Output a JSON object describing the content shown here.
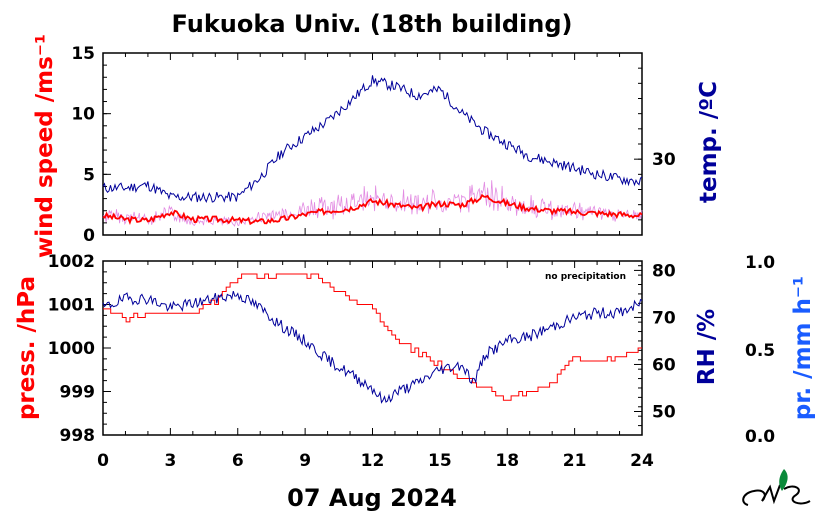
{
  "title": "Fukuoka Univ. (18th building)",
  "date_label": "07 Aug 2024",
  "colors": {
    "wind": "#ff0000",
    "wind_raw": "#dd77dd",
    "temp": "#00009a",
    "press": "#ff0000",
    "rh": "#00009a",
    "precip": "#1a5cff",
    "frame": "#000000"
  },
  "chart_data": [
    {
      "type": "line",
      "panel": "top",
      "x_ticks": [
        "0",
        "3",
        "6",
        "9",
        "12",
        "15",
        "18",
        "21",
        "24"
      ],
      "xlim": [
        0,
        24
      ],
      "y_left": {
        "label": "wind speed /ms⁻¹",
        "ticks": [
          "0",
          "5",
          "10",
          "15"
        ],
        "lim": [
          0,
          15
        ]
      },
      "y_right": {
        "label": "temp. /ºC",
        "ticks": [
          "30"
        ],
        "lim": [
          25,
          37
        ]
      },
      "series": [
        {
          "axis": "left",
          "style": "raw",
          "x": [
            0,
            1,
            2,
            3,
            4,
            5,
            6,
            7,
            8,
            9,
            10,
            11,
            12,
            13,
            14,
            15,
            16,
            17,
            18,
            19,
            20,
            21,
            22,
            23,
            24
          ],
          "y": [
            2.0,
            1.8,
            1.6,
            2.3,
            1.4,
            1.5,
            1.3,
            1.7,
            2.0,
            2.5,
            2.8,
            3.0,
            3.6,
            3.2,
            3.0,
            3.3,
            3.2,
            4.3,
            3.2,
            2.8,
            2.5,
            2.4,
            2.2,
            2.0,
            1.9
          ]
        },
        {
          "axis": "left",
          "style": "mean",
          "x": [
            0,
            1,
            2,
            3,
            4,
            5,
            6,
            7,
            8,
            9,
            10,
            11,
            12,
            13,
            14,
            15,
            16,
            17,
            18,
            19,
            20,
            21,
            22,
            23,
            24
          ],
          "y": [
            1.6,
            1.3,
            1.2,
            1.9,
            1.3,
            1.3,
            1.2,
            1.1,
            1.3,
            1.7,
            2.0,
            2.2,
            2.8,
            2.5,
            2.2,
            2.6,
            2.5,
            3.2,
            2.6,
            2.2,
            2.0,
            1.9,
            1.8,
            1.7,
            1.6
          ]
        },
        {
          "axis": "right",
          "x": [
            0,
            1,
            2,
            3,
            4,
            5,
            6,
            7,
            8,
            9,
            10,
            11,
            12,
            13,
            14,
            15,
            16,
            17,
            18,
            19,
            20,
            21,
            22,
            23,
            24
          ],
          "y": [
            28.1,
            28.1,
            28.3,
            27.5,
            27.5,
            27.5,
            27.5,
            28.8,
            30.5,
            31.5,
            32.5,
            33.8,
            35.2,
            34.8,
            34.2,
            34.6,
            33.0,
            31.8,
            31.0,
            30.2,
            29.8,
            29.4,
            29.0,
            28.7,
            28.5
          ]
        }
      ]
    },
    {
      "type": "line",
      "panel": "bottom",
      "note": "no precipitation",
      "x_ticks": [
        "0",
        "3",
        "6",
        "9",
        "12",
        "15",
        "18",
        "21",
        "24"
      ],
      "xlim": [
        0,
        24
      ],
      "y_left": {
        "label": "press. /hPa",
        "ticks": [
          "998",
          "999",
          "1000",
          "1001",
          "1002"
        ],
        "lim": [
          998,
          1002
        ]
      },
      "y_right": {
        "label": "RH /%",
        "ticks": [
          "50",
          "60",
          "70",
          "80"
        ],
        "lim": [
          45,
          82
        ]
      },
      "y_far_right": {
        "label": "pr. /mm h⁻¹",
        "ticks": [
          "0.0",
          "0.5",
          "1.0"
        ],
        "lim": [
          0,
          1
        ]
      },
      "series": [
        {
          "axis": "left",
          "x": [
            0,
            1,
            2,
            3,
            4,
            5,
            6,
            6.5,
            7,
            8,
            9,
            10,
            11,
            12,
            13,
            14,
            15,
            16,
            17,
            18,
            19,
            20,
            21,
            22,
            23,
            24
          ],
          "y": [
            1000.9,
            1000.7,
            1000.8,
            1000.8,
            1000.8,
            1001.1,
            1001.6,
            1001.7,
            1001.6,
            1001.7,
            1001.7,
            1001.5,
            1001.1,
            1000.9,
            1000.2,
            999.9,
            999.6,
            999.3,
            999.1,
            998.8,
            999.0,
            999.2,
            999.8,
            999.7,
            999.8,
            1000.0
          ]
        },
        {
          "axis": "right",
          "x": [
            0,
            1,
            2,
            3,
            4,
            5,
            6,
            7,
            8,
            9,
            10,
            11,
            12,
            12.5,
            13,
            14,
            15,
            16,
            16.5,
            17,
            18,
            19,
            20,
            21,
            22,
            23,
            24
          ],
          "y": [
            72,
            74,
            74,
            72,
            73,
            74,
            75,
            72,
            68,
            65,
            61,
            58,
            55,
            52,
            54,
            56,
            59,
            60,
            56,
            62,
            65,
            66,
            68,
            70,
            71,
            71,
            73
          ]
        }
      ]
    }
  ]
}
